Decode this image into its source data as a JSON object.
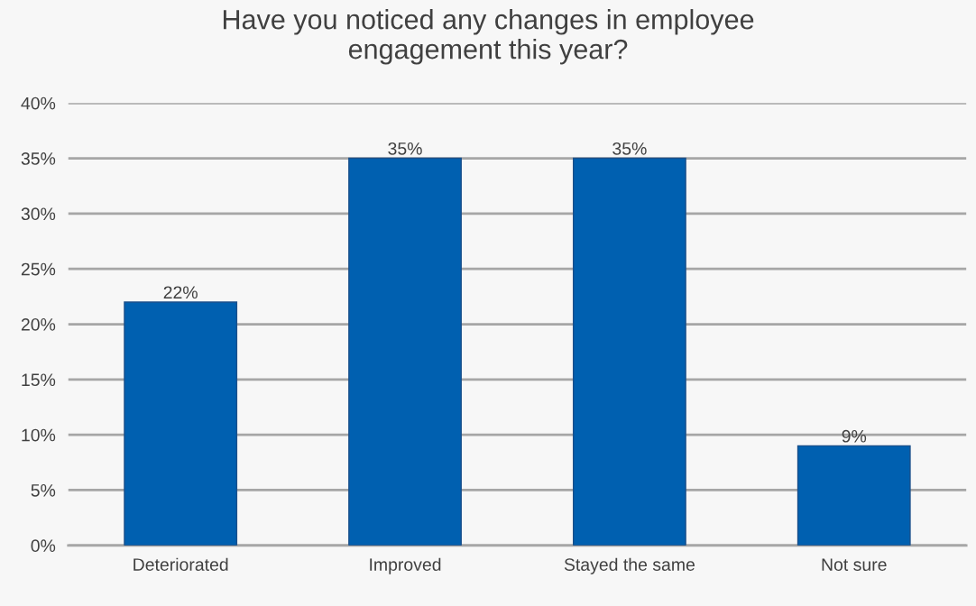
{
  "chart_data": {
    "type": "bar",
    "title": "Have you noticed any changes in employee\nengagement this year?",
    "categories": [
      "Deteriorated",
      "Improved",
      "Stayed the same",
      "Not sure"
    ],
    "values": [
      22,
      35,
      35,
      9
    ],
    "color": "#0060b0",
    "value_labels": [
      "22%",
      "35%",
      "35%",
      "9%"
    ],
    "ylim": [
      0,
      40
    ],
    "yticks": [
      {
        "value": 0,
        "label": "0%"
      },
      {
        "value": 5,
        "label": "5%"
      },
      {
        "value": 10,
        "label": "10%"
      },
      {
        "value": 15,
        "label": "15%"
      },
      {
        "value": 20,
        "label": "20%"
      },
      {
        "value": 25,
        "label": "25%"
      },
      {
        "value": 30,
        "label": "30%"
      },
      {
        "value": 35,
        "label": "35%"
      },
      {
        "value": 40,
        "label": "40%"
      }
    ],
    "grid": "y",
    "legend": false
  }
}
